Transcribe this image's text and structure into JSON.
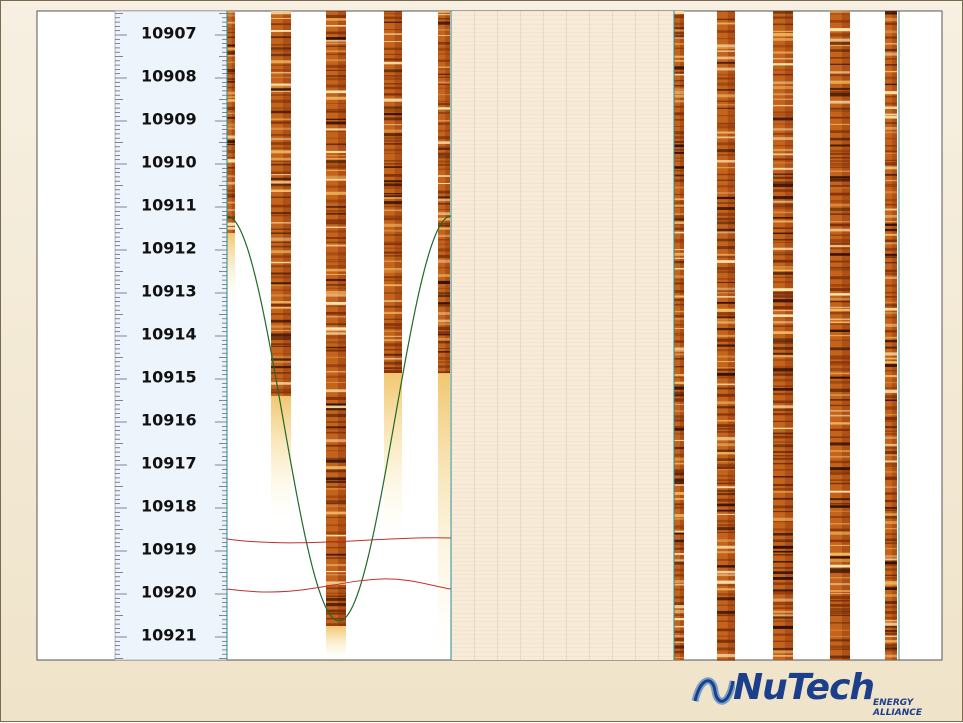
{
  "depth_track": {
    "labels": [
      "10907",
      "10908",
      "10909",
      "10910",
      "10911",
      "10912",
      "10913",
      "10914",
      "10915",
      "10916",
      "10917",
      "10918",
      "10919",
      "10920",
      "10921"
    ]
  },
  "logo": {
    "name": "NuTech",
    "tagline": "ENERGY ALLIANCE"
  }
}
